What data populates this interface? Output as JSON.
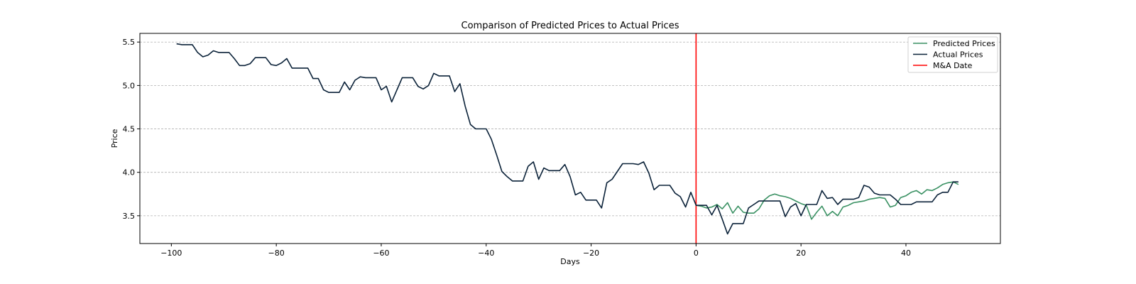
{
  "chart_data": {
    "type": "line",
    "title": "Comparison of Predicted Prices to Actual Prices",
    "xlabel": "Days",
    "ylabel": "Price",
    "xlim": [
      -106,
      58
    ],
    "ylim": [
      3.18,
      5.6
    ],
    "xticks": [
      -100,
      -80,
      -60,
      -40,
      -20,
      0,
      20,
      40
    ],
    "xtick_labels": [
      "−100",
      "−80",
      "−60",
      "−40",
      "−20",
      "0",
      "20",
      "40"
    ],
    "yticks": [
      3.5,
      4.0,
      4.5,
      5.0,
      5.5
    ],
    "ytick_labels": [
      "3.5",
      "4.0",
      "4.5",
      "5.0",
      "5.5"
    ],
    "grid": "y-dashed",
    "legend": "top-right",
    "vline": {
      "x": 0,
      "name": "M&A Date",
      "color": "#ff0000"
    },
    "series": [
      {
        "name": "Predicted Prices",
        "color": "#3a9163",
        "x": [
          0,
          1,
          2,
          3,
          4,
          5,
          6,
          7,
          8,
          9,
          10,
          11,
          12,
          13,
          14,
          15,
          16,
          17,
          18,
          19,
          20,
          21,
          22,
          23,
          24,
          25,
          26,
          27,
          28,
          29,
          30,
          31,
          32,
          33,
          34,
          35,
          36,
          37,
          38,
          39,
          40,
          41,
          42,
          43,
          44,
          45,
          46,
          47,
          48,
          49,
          50
        ],
        "y": [
          3.62,
          3.61,
          3.59,
          3.6,
          3.63,
          3.58,
          3.65,
          3.53,
          3.61,
          3.54,
          3.53,
          3.53,
          3.58,
          3.68,
          3.73,
          3.75,
          3.73,
          3.72,
          3.7,
          3.67,
          3.64,
          3.62,
          3.46,
          3.54,
          3.61,
          3.5,
          3.55,
          3.5,
          3.6,
          3.62,
          3.65,
          3.66,
          3.67,
          3.69,
          3.7,
          3.71,
          3.7,
          3.6,
          3.62,
          3.71,
          3.73,
          3.77,
          3.79,
          3.75,
          3.8,
          3.79,
          3.82,
          3.86,
          3.88,
          3.89,
          3.86
        ]
      },
      {
        "name": "Actual Prices",
        "color": "#0b2239",
        "x": [
          -99,
          -98,
          -97,
          -96,
          -95,
          -94,
          -93,
          -92,
          -91,
          -90,
          -89,
          -88,
          -87,
          -86,
          -85,
          -84,
          -83,
          -82,
          -81,
          -80,
          -79,
          -78,
          -77,
          -76,
          -75,
          -74,
          -73,
          -72,
          -71,
          -70,
          -69,
          -68,
          -67,
          -66,
          -65,
          -64,
          -63,
          -62,
          -61,
          -60,
          -59,
          -58,
          -57,
          -56,
          -55,
          -54,
          -53,
          -52,
          -51,
          -50,
          -49,
          -48,
          -47,
          -46,
          -45,
          -44,
          -43,
          -42,
          -41,
          -40,
          -39,
          -38,
          -37,
          -36,
          -35,
          -34,
          -33,
          -32,
          -31,
          -30,
          -29,
          -28,
          -27,
          -26,
          -25,
          -24,
          -23,
          -22,
          -21,
          -20,
          -19,
          -18,
          -17,
          -16,
          -15,
          -14,
          -13,
          -12,
          -11,
          -10,
          -9,
          -8,
          -7,
          -6,
          -5,
          -4,
          -3,
          -2,
          -1,
          0,
          1,
          2,
          3,
          4,
          5,
          6,
          7,
          8,
          9,
          10,
          11,
          12,
          13,
          14,
          15,
          16,
          17,
          18,
          19,
          20,
          21,
          22,
          23,
          24,
          25,
          26,
          27,
          28,
          29,
          30,
          31,
          32,
          33,
          34,
          35,
          36,
          37,
          38,
          39,
          40,
          41,
          42,
          43,
          44,
          45,
          46,
          47,
          48,
          49,
          50
        ],
        "y": [
          5.48,
          5.47,
          5.47,
          5.47,
          5.38,
          5.33,
          5.35,
          5.4,
          5.38,
          5.38,
          5.38,
          5.31,
          5.23,
          5.23,
          5.25,
          5.32,
          5.32,
          5.32,
          5.24,
          5.23,
          5.26,
          5.31,
          5.2,
          5.2,
          5.2,
          5.2,
          5.08,
          5.08,
          4.95,
          4.92,
          4.92,
          4.92,
          5.04,
          4.95,
          5.06,
          5.1,
          5.09,
          5.09,
          5.09,
          4.95,
          4.99,
          4.81,
          4.95,
          5.09,
          5.09,
          5.09,
          4.99,
          4.96,
          5.0,
          5.14,
          5.11,
          5.11,
          5.11,
          4.93,
          5.02,
          4.76,
          4.55,
          4.5,
          4.5,
          4.5,
          4.38,
          4.2,
          4.01,
          3.95,
          3.9,
          3.9,
          3.9,
          4.07,
          4.12,
          3.92,
          4.05,
          4.02,
          4.02,
          4.02,
          4.09,
          3.95,
          3.74,
          3.77,
          3.68,
          3.68,
          3.68,
          3.59,
          3.88,
          3.92,
          4.01,
          4.1,
          4.1,
          4.1,
          4.09,
          4.12,
          3.99,
          3.8,
          3.85,
          3.85,
          3.85,
          3.76,
          3.72,
          3.6,
          3.77,
          3.62,
          3.62,
          3.62,
          3.51,
          3.62,
          3.46,
          3.29,
          3.41,
          3.41,
          3.41,
          3.59,
          3.63,
          3.67,
          3.67,
          3.67,
          3.67,
          3.67,
          3.49,
          3.6,
          3.64,
          3.5,
          3.63,
          3.63,
          3.63,
          3.79,
          3.7,
          3.71,
          3.63,
          3.69,
          3.69,
          3.69,
          3.71,
          3.85,
          3.83,
          3.76,
          3.74,
          3.74,
          3.74,
          3.69,
          3.63,
          3.63,
          3.63,
          3.66,
          3.66,
          3.66,
          3.66,
          3.74,
          3.77,
          3.77,
          3.89,
          3.89
        ]
      }
    ]
  }
}
